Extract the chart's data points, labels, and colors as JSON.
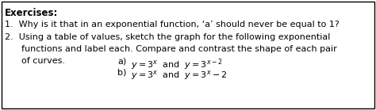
{
  "title": "Exercises:",
  "line1": "1.  Why is it that in an exponential function, ‘a’ should never be equal to 1?",
  "line2": "2.  Using a table of values, sketch the graph for the following exponential",
  "line3": "      functions and label each. Compare and contrast the shape of each pair",
  "line4_curves": "      of curves.",
  "line4a_label": "a)",
  "line4b_label": "b)",
  "bg_color": "#ffffff",
  "border_color": "#000000",
  "text_color": "#000000",
  "font_size": 8.0,
  "title_font_size": 8.5,
  "fig_width": 4.74,
  "fig_height": 1.39,
  "dpi": 100
}
